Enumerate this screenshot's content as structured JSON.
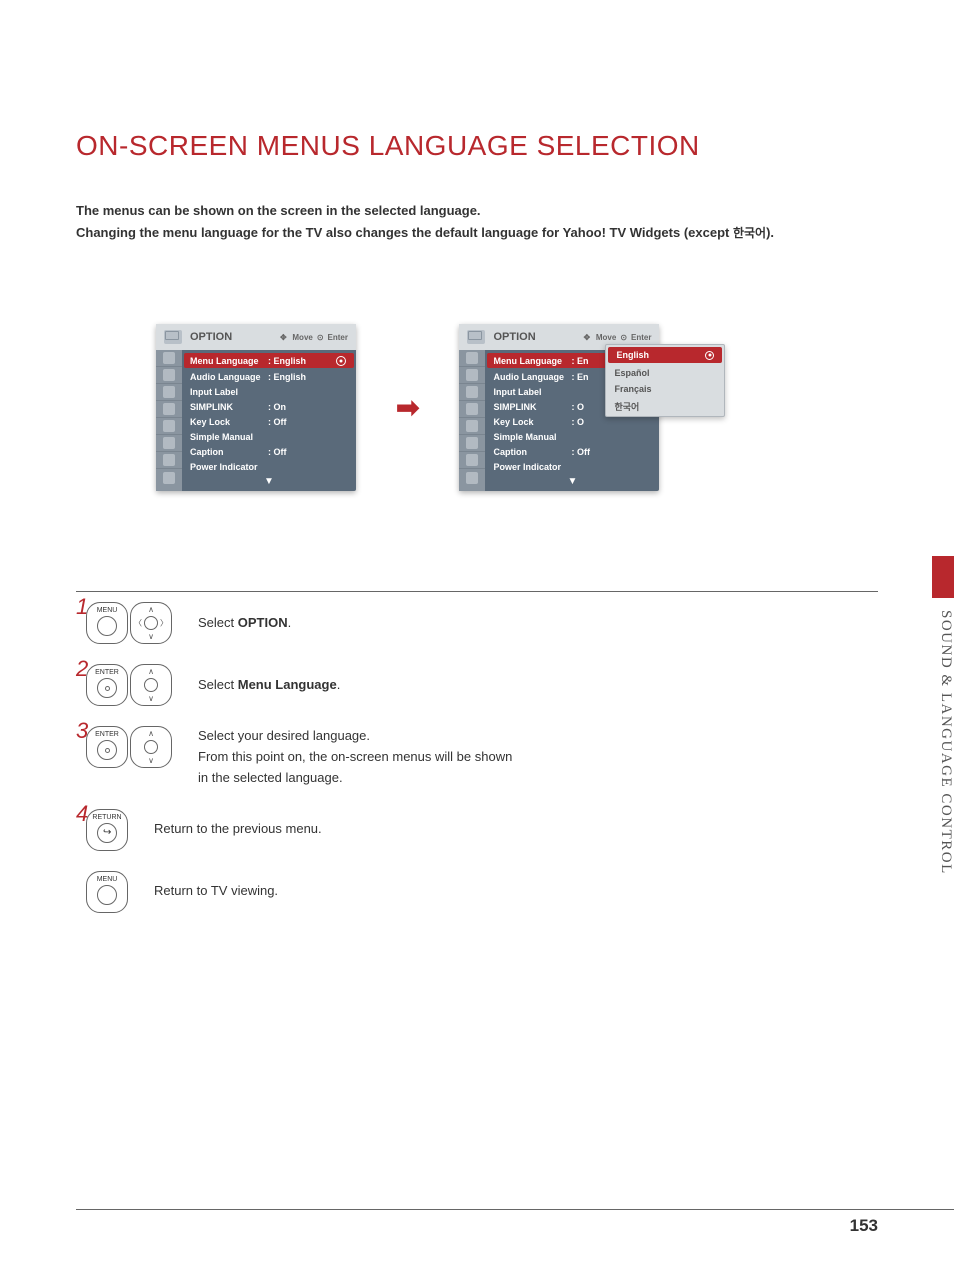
{
  "title": "ON-SCREEN MENUS LANGUAGE SELECTION",
  "intro_line1": "The menus can be shown on the screen in the selected language.",
  "intro_line2": "Changing the menu language for the TV also changes the default language for Yahoo! TV Widgets (except ",
  "intro_korean": "한국어",
  "intro_line2_end": ").",
  "side_tab": "SOUND & LANGUAGE CONTROL",
  "page_number": "153",
  "menu": {
    "header_title": "OPTION",
    "move_label": "Move",
    "enter_label": "Enter",
    "items": [
      {
        "label": "Menu Language",
        "value": ": English"
      },
      {
        "label": "Audio Language",
        "value": ": English"
      },
      {
        "label": "Input Label",
        "value": ""
      },
      {
        "label": "SIMPLINK",
        "value": ": On"
      },
      {
        "label": "Key Lock",
        "value": ": Off"
      },
      {
        "label": "Simple Manual",
        "value": ""
      },
      {
        "label": "Caption",
        "value": ": Off"
      },
      {
        "label": "Power Indicator",
        "value": ""
      }
    ]
  },
  "menu2": {
    "items": [
      {
        "label": "Menu Language",
        "value": ": En"
      },
      {
        "label": "Audio Language",
        "value": ": En"
      },
      {
        "label": "Input Label",
        "value": ""
      },
      {
        "label": "SIMPLINK",
        "value": ": O"
      },
      {
        "label": "Key Lock",
        "value": ": O"
      },
      {
        "label": "Simple Manual",
        "value": ""
      },
      {
        "label": "Caption",
        "value": ": Off"
      },
      {
        "label": "Power Indicator",
        "value": ""
      }
    ]
  },
  "lang_popup": [
    "English",
    "Español",
    "Français",
    "한국어"
  ],
  "arrow": "➡",
  "steps": {
    "s1_num": "1",
    "s1_btn": "MENU",
    "s1_text_pre": "Select ",
    "s1_text_bold": "OPTION",
    "s1_text_post": ".",
    "s2_num": "2",
    "s2_btn": "ENTER",
    "s2_text_pre": "Select ",
    "s2_text_bold": "Menu Language",
    "s2_text_post": ".",
    "s3_num": "3",
    "s3_btn": "ENTER",
    "s3_text_a": "Select your desired language.",
    "s3_text_b": "From this point on, the on-screen menus will be shown in the selected language.",
    "s4_num": "4",
    "s4_btn": "RETURN",
    "s4_text": "Return to the previous menu.",
    "s5_btn": "MENU",
    "s5_text": "Return to TV viewing."
  }
}
